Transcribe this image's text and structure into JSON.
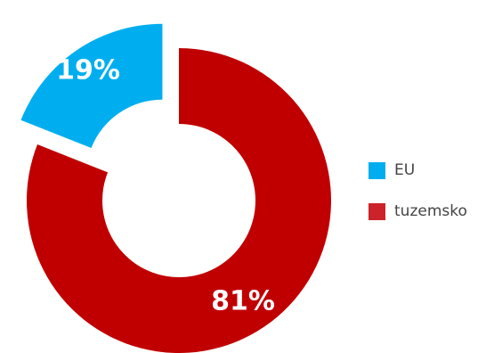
{
  "chart_data": {
    "type": "pie",
    "variant": "donut",
    "exploded_slice": "EU",
    "slices": [
      {
        "label": "EU",
        "value": 19,
        "display": "19%",
        "color": "#00AEEF"
      },
      {
        "label": "tuzemsko",
        "value": 81,
        "display": "81%",
        "color": "#C00000"
      }
    ],
    "legend_position": "right"
  },
  "legend": {
    "items": [
      {
        "label": "EU",
        "color": "#00AEEF"
      },
      {
        "label": "tuzemsko",
        "color": "#CC2229"
      }
    ]
  }
}
